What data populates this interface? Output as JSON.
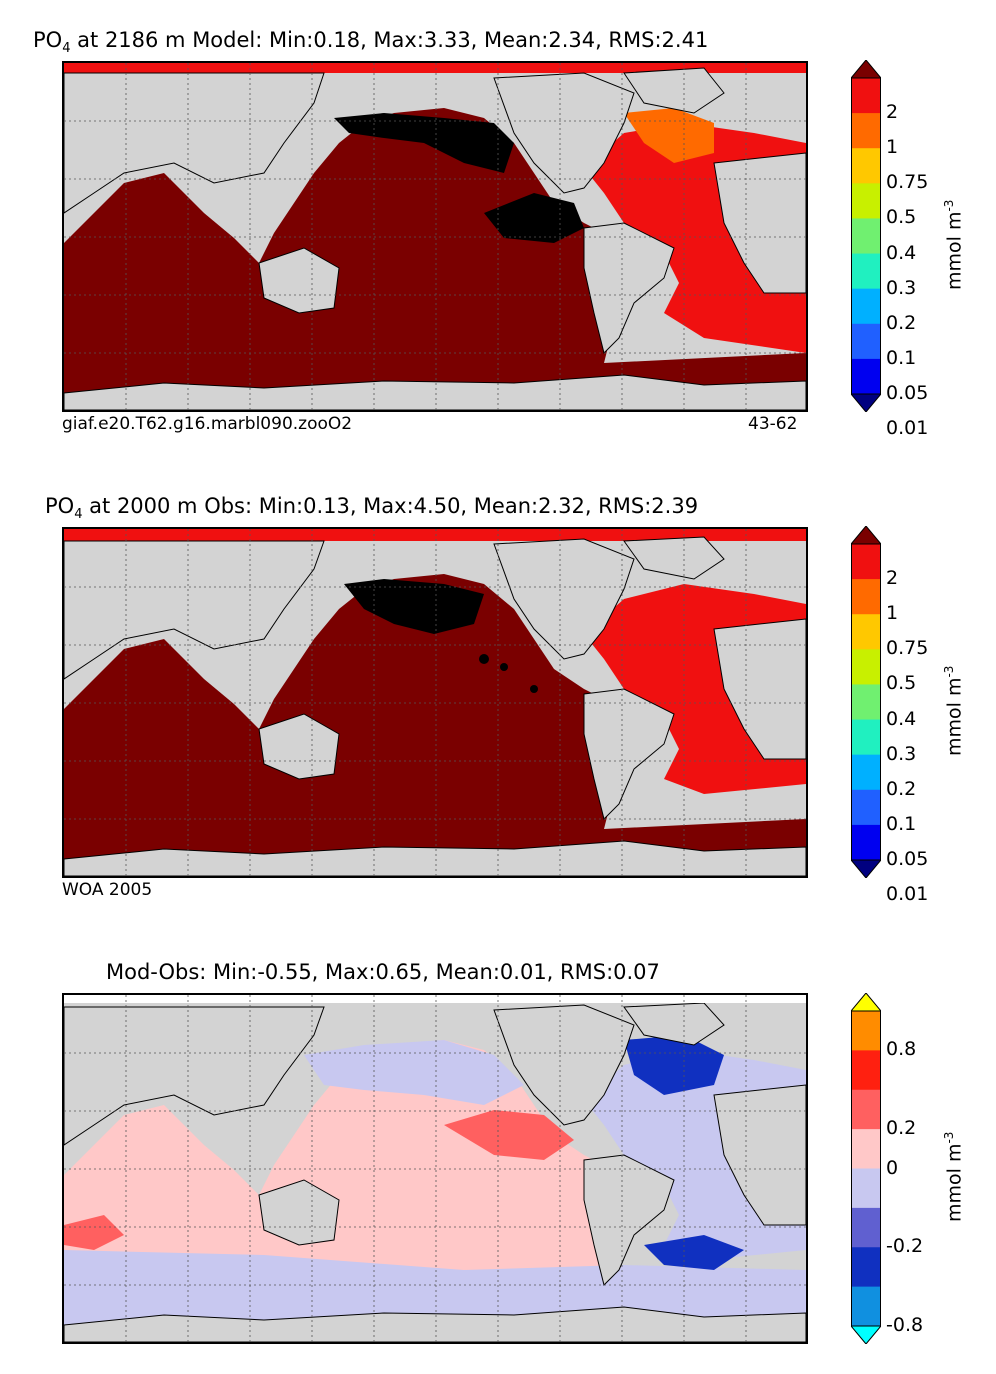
{
  "panels": [
    {
      "title_species": "PO",
      "title_sub": "4",
      "title_rest": " at 2186 m Model: Min:0.18, Max:3.33, Mean:2.34, RMS:2.41",
      "caption_left": "giaf.e20.T62.g16.marbl090.zooO2",
      "caption_right": "43-62",
      "colorbar": {
        "levels": [
          "2",
          "1",
          "0.75",
          "0.5",
          "0.4",
          "0.3",
          "0.2",
          "0.1",
          "0.05",
          "0.01"
        ],
        "colors": [
          "#7a0000",
          "#f01010",
          "#ff6a00",
          "#ffc800",
          "#c8f000",
          "#70f070",
          "#20f0c0",
          "#00b0ff",
          "#2060ff",
          "#0000f0",
          "#000080"
        ],
        "unit": "mmol m",
        "unit_sup": "-3"
      }
    },
    {
      "title_species": "PO",
      "title_sub": "4",
      "title_rest": " at 2000 m Obs: Min:0.13, Max:4.50, Mean:2.32, RMS:2.39",
      "caption_left": "WOA 2005",
      "caption_right": "",
      "colorbar": {
        "levels": [
          "2",
          "1",
          "0.75",
          "0.5",
          "0.4",
          "0.3",
          "0.2",
          "0.1",
          "0.05",
          "0.01"
        ],
        "colors": [
          "#7a0000",
          "#f01010",
          "#ff6a00",
          "#ffc800",
          "#c8f000",
          "#70f070",
          "#20f0c0",
          "#00b0ff",
          "#2060ff",
          "#0000f0",
          "#000080"
        ],
        "unit": "mmol m",
        "unit_sup": "-3"
      }
    },
    {
      "title_species": "",
      "title_sub": "",
      "title_rest": "Mod-Obs: Min:-0.55, Max:0.65, Mean:0.01, RMS:0.07",
      "caption_left": "",
      "caption_right": "",
      "colorbar": {
        "levels": [
          "0.8",
          "0.2",
          "0",
          "-0.2",
          "-0.8"
        ],
        "colors": [
          "#ffff00",
          "#ff8c00",
          "#ff2010",
          "#ff6060",
          "#ffc8c8",
          "#c8c8f0",
          "#6060d0",
          "#1030c0",
          "#1090e0",
          "#00ffff"
        ],
        "unit": "mmol m",
        "unit_sup": "-3"
      }
    }
  ],
  "colors": {
    "land": "#d3d3d3",
    "nodata": "#ffffff",
    "coast": "#000000"
  }
}
